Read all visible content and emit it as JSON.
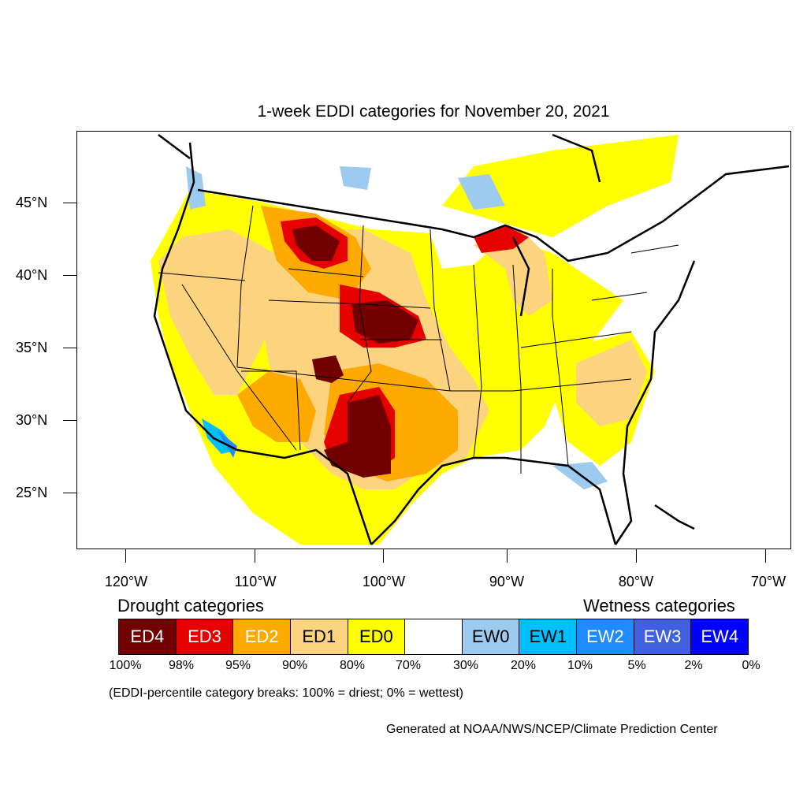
{
  "title": "1-week EDDI categories for November 20, 2021",
  "latitude_labels": [
    "45°N",
    "40°N",
    "35°N",
    "30°N",
    "25°N"
  ],
  "longitude_labels": [
    "120°W",
    "110°W",
    "100°W",
    "90°W",
    "80°W",
    "70°W"
  ],
  "legend": {
    "drought_title": "Drought categories",
    "wetness_title": "Wetness categories",
    "categories": [
      {
        "label": "ED4",
        "color": "#730000",
        "text_color": "#ffffff"
      },
      {
        "label": "ED3",
        "color": "#e60000",
        "text_color": "#ffffff"
      },
      {
        "label": "ED2",
        "color": "#ffaa00",
        "text_color": "#ffffff"
      },
      {
        "label": "ED1",
        "color": "#fcd37f",
        "text_color": "#000000"
      },
      {
        "label": "ED0",
        "color": "#ffff00",
        "text_color": "#000000"
      },
      {
        "label": "",
        "color": "#ffffff",
        "text_color": "#000000"
      },
      {
        "label": "EW0",
        "color": "#9ccbef",
        "text_color": "#000000"
      },
      {
        "label": "EW1",
        "color": "#00bfff",
        "text_color": "#000000"
      },
      {
        "label": "EW2",
        "color": "#1e8cff",
        "text_color": "#ffffff"
      },
      {
        "label": "EW3",
        "color": "#4060e0",
        "text_color": "#ffffff"
      },
      {
        "label": "EW4",
        "color": "#0000ff",
        "text_color": "#ffffff"
      }
    ],
    "percent_breaks": [
      "100%",
      "98%",
      "95%",
      "90%",
      "80%",
      "70%",
      "30%",
      "20%",
      "10%",
      "5%",
      "2%",
      "0%"
    ]
  },
  "note": "(EDDI-percentile category breaks: 100% = driest; 0% = wettest)",
  "credit": "Generated at NOAA/NWS/NCEP/Climate Prediction Center"
}
